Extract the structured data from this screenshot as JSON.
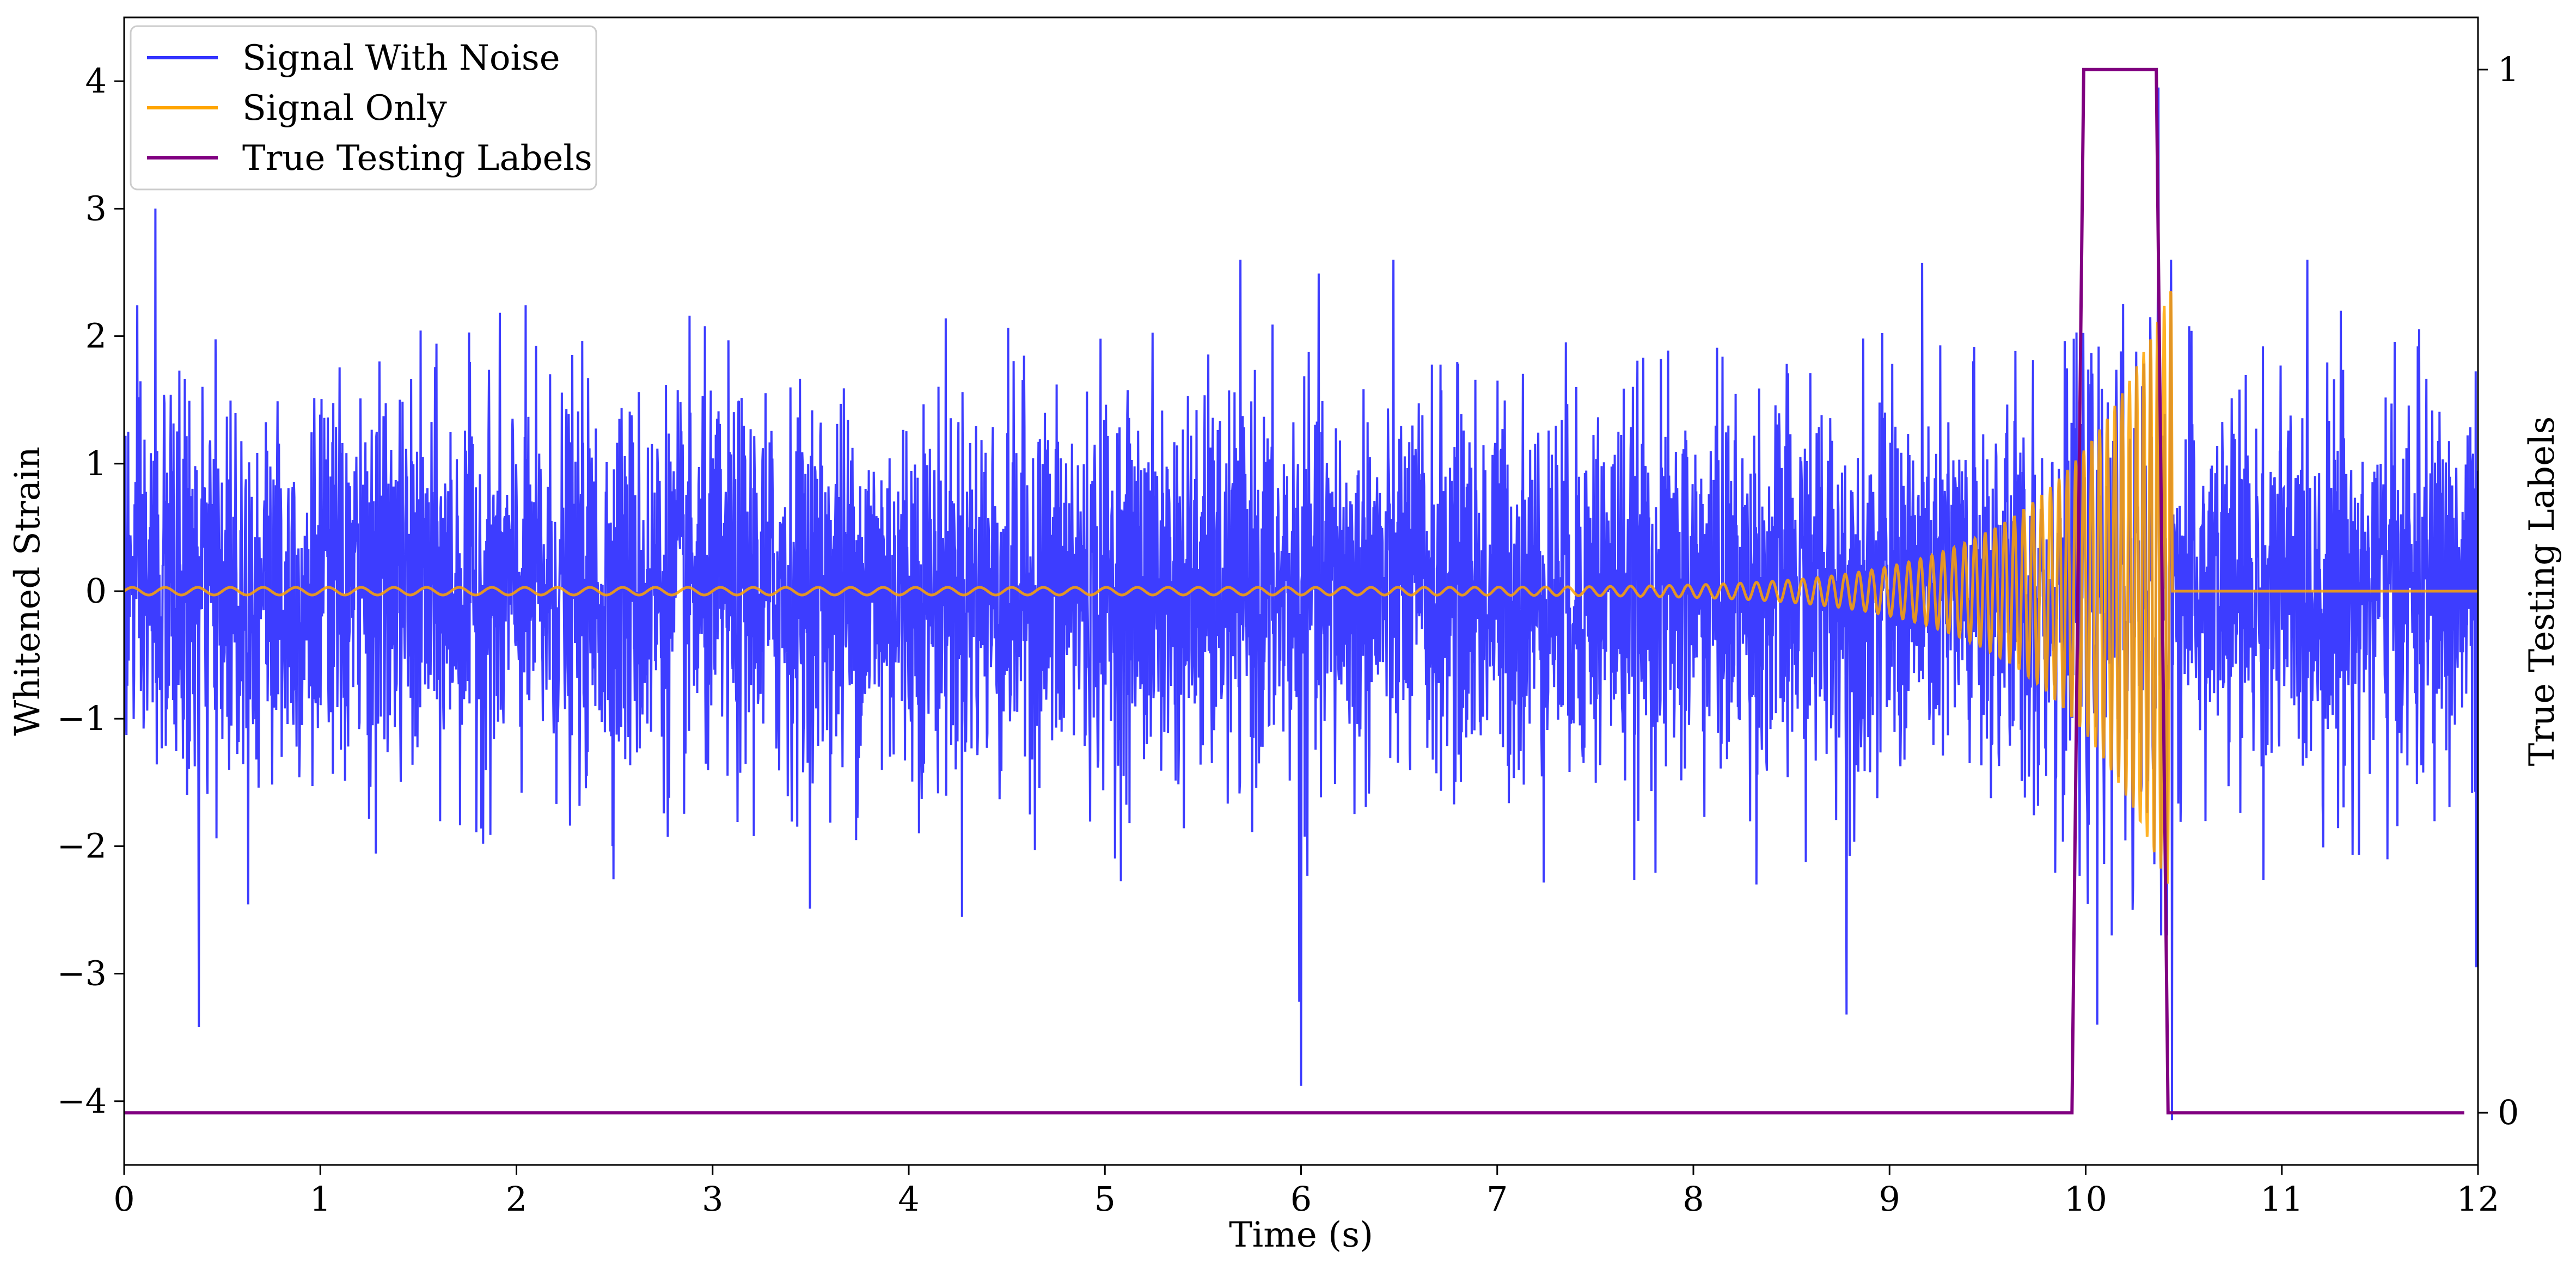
{
  "chart_data": {
    "type": "line",
    "title": "",
    "xlabel": "Time (s)",
    "ylabel": "Whitened Strain",
    "y2label": "True Testing Labels",
    "xlim": [
      0,
      12
    ],
    "ylim": [
      -4.5,
      4.5
    ],
    "y2lim": [
      -0.05,
      1.05
    ],
    "xticks": [
      0,
      1,
      2,
      3,
      4,
      5,
      6,
      7,
      8,
      9,
      10,
      11,
      12
    ],
    "yticks": [
      -4,
      -3,
      -2,
      -1,
      0,
      1,
      2,
      3,
      4
    ],
    "y2ticks": [
      0,
      1
    ],
    "grid": false,
    "legend_position": "top-left",
    "series": [
      {
        "name": "Signal With Noise",
        "color": "#3333ff",
        "axis": "left",
        "description_values": {
          "noise_std": 0.75,
          "peaks": [
            [
              0.16,
              3.0
            ],
            [
              0.38,
              -3.42
            ],
            [
              6.0,
              -3.88
            ],
            [
              5.99,
              -3.22
            ],
            [
              8.78,
              -3.32
            ],
            [
              10.06,
              -3.4
            ],
            [
              10.37,
              3.95
            ],
            [
              10.44,
              -4.15
            ],
            [
              11.3,
              2.2
            ],
            [
              11.99,
              -2.95
            ]
          ]
        }
      },
      {
        "name": "Signal Only",
        "color": "#ffa500",
        "axis": "left",
        "chirp": {
          "t_start": 0.0,
          "t_merge": 10.44,
          "amplitude_start": 0.03,
          "amplitude_peak": 2.4,
          "frequency_start_hz": 6,
          "frequency_end_hz": 30,
          "value_after_merge": 0.0
        }
      },
      {
        "name": "True Testing Labels",
        "color": "#800080",
        "axis": "right",
        "x": [
          0.0,
          9.93,
          9.99,
          10.36,
          10.42,
          11.93
        ],
        "y": [
          0,
          0,
          1,
          1,
          0,
          0
        ]
      }
    ]
  }
}
